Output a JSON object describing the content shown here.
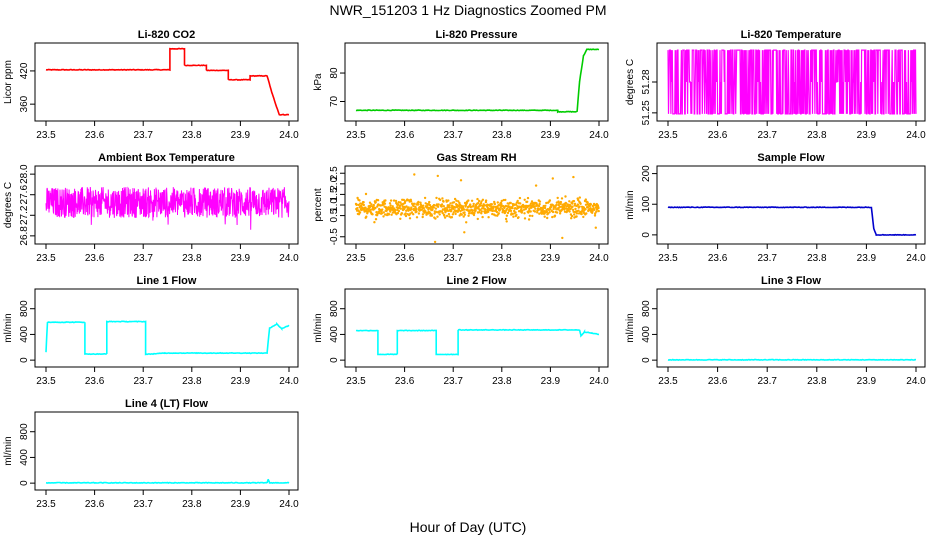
{
  "page": {
    "title": "NWR_151203  1 Hz Diagnostics Zoomed PM",
    "xlabel": "Hour of Day (UTC)"
  },
  "chart_data": [
    {
      "id": "co2",
      "type": "line",
      "title": "Li-820 CO2",
      "xlabel": "",
      "ylabel": "Licor ppm",
      "color": "#ff0000",
      "xlim": [
        23.5,
        24.0
      ],
      "ylim": [
        335,
        465
      ],
      "xticks": [
        "23.5",
        "23.6",
        "23.7",
        "23.8",
        "23.9",
        "24.0"
      ],
      "yticks": [
        "360",
        "420"
      ],
      "x": [
        23.5,
        23.755,
        23.755,
        23.785,
        23.785,
        23.83,
        23.83,
        23.875,
        23.875,
        23.92,
        23.92,
        23.955,
        23.965,
        23.98,
        24.0
      ],
      "y": [
        422,
        422,
        460,
        460,
        430,
        430,
        421,
        421,
        404,
        404,
        411,
        411,
        380,
        341,
        341
      ]
    },
    {
      "id": "pressure",
      "type": "line",
      "title": "Li-820 Pressure",
      "xlabel": "",
      "ylabel": "kPa",
      "color": "#00cc00",
      "xlim": [
        23.5,
        24.0
      ],
      "ylim": [
        64.2,
        89.5
      ],
      "xticks": [
        "23.5",
        "23.6",
        "23.7",
        "23.8",
        "23.9",
        "24.0"
      ],
      "yticks": [
        "70",
        "80"
      ],
      "x": [
        23.5,
        23.915,
        23.915,
        23.955,
        23.96,
        23.968,
        23.975,
        24.0
      ],
      "y": [
        66.9,
        66.9,
        66.4,
        66.4,
        77.0,
        86.0,
        88.3,
        88.3
      ]
    },
    {
      "id": "li820temp",
      "type": "line",
      "title": "Li-820 Temperature",
      "xlabel": "",
      "ylabel": "degrees C",
      "color": "#ff00ff",
      "xlim": [
        23.5,
        24.0
      ],
      "ylim": [
        51.245,
        51.315
      ],
      "xticks": [
        "23.5",
        "23.6",
        "23.7",
        "23.8",
        "23.9",
        "24.0"
      ],
      "yticks": [
        "51.25",
        "51.28"
      ],
      "levels": [
        51.249,
        51.28,
        51.311
      ]
    },
    {
      "id": "boxtemp",
      "type": "line",
      "title": "Ambient Box Temperature",
      "xlabel": "",
      "ylabel": "degrees C",
      "color": "#ff00ff",
      "xlim": [
        23.5,
        24.0
      ],
      "ylim": [
        26.7,
        28.1
      ],
      "xticks": [
        "23.5",
        "23.6",
        "23.7",
        "23.8",
        "23.9",
        "24.0"
      ],
      "yticks": [
        "26.8",
        "27.2",
        "27.6",
        "28.0"
      ],
      "mean": 27.45,
      "spread": 0.3
    },
    {
      "id": "rh",
      "type": "scatter",
      "title": "Gas Stream RH",
      "xlabel": "",
      "ylabel": "percent",
      "color": "#ffaa00",
      "xlim": [
        23.5,
        24.0
      ],
      "ylim": [
        -0.7,
        2.7
      ],
      "xticks": [
        "23.5",
        "23.6",
        "23.7",
        "23.8",
        "23.9",
        "24.0"
      ],
      "yticks": [
        "-0.5",
        "0.5",
        "1.0",
        "1.5",
        "2.0",
        "2.5"
      ],
      "mean": 0.85,
      "spread": 0.4
    },
    {
      "id": "sampleflow",
      "type": "line",
      "title": "Sample Flow",
      "xlabel": "",
      "ylabel": "ml/min",
      "color": "#0000cc",
      "xlim": [
        23.5,
        24.0
      ],
      "ylim": [
        -20,
        215
      ],
      "xticks": [
        "23.5",
        "23.6",
        "23.7",
        "23.8",
        "23.9",
        "24.0"
      ],
      "yticks": [
        "0",
        "100",
        "200"
      ],
      "x": [
        23.5,
        23.91,
        23.915,
        23.92,
        24.0
      ],
      "y": [
        90,
        90,
        20,
        0,
        0
      ]
    },
    {
      "id": "line1",
      "type": "line",
      "title": "Line 1 Flow",
      "xlabel": "",
      "ylabel": "ml/min",
      "color": "#00ffff",
      "xlim": [
        23.5,
        24.0
      ],
      "ylim": [
        -60,
        1060
      ],
      "xticks": [
        "23.5",
        "23.6",
        "23.7",
        "23.8",
        "23.9",
        "24.0"
      ],
      "yticks": [
        "0",
        "400",
        "800"
      ],
      "x": [
        23.5,
        23.503,
        23.58,
        23.58,
        23.625,
        23.625,
        23.705,
        23.705,
        23.745,
        23.955,
        23.96,
        23.975,
        23.985,
        24.0
      ],
      "y": [
        120,
        590,
        590,
        95,
        95,
        600,
        600,
        90,
        110,
        110,
        500,
        560,
        490,
        540
      ]
    },
    {
      "id": "line2",
      "type": "line",
      "title": "Line 2 Flow",
      "xlabel": "",
      "ylabel": "ml/min",
      "color": "#00ffff",
      "xlim": [
        23.5,
        24.0
      ],
      "ylim": [
        -60,
        1060
      ],
      "xticks": [
        "23.5",
        "23.6",
        "23.7",
        "23.8",
        "23.9",
        "24.0"
      ],
      "yticks": [
        "0",
        "400",
        "800"
      ],
      "x": [
        23.5,
        23.545,
        23.545,
        23.585,
        23.585,
        23.665,
        23.665,
        23.71,
        23.71,
        23.96,
        23.963,
        23.97,
        23.985,
        24.0
      ],
      "y": [
        460,
        460,
        90,
        90,
        460,
        460,
        90,
        90,
        470,
        470,
        380,
        440,
        420,
        400
      ]
    },
    {
      "id": "line3",
      "type": "line",
      "title": "Line 3 Flow",
      "xlabel": "",
      "ylabel": "ml/min",
      "color": "#00ffff",
      "xlim": [
        23.5,
        24.0
      ],
      "ylim": [
        -60,
        1060
      ],
      "xticks": [
        "23.5",
        "23.6",
        "23.7",
        "23.8",
        "23.9",
        "24.0"
      ],
      "yticks": [
        "0",
        "400",
        "800"
      ],
      "x": [
        23.5,
        24.0
      ],
      "y": [
        5,
        5
      ]
    },
    {
      "id": "line4",
      "type": "line",
      "title": "Line 4 (LT) Flow",
      "xlabel": "",
      "ylabel": "ml/min",
      "color": "#00ffff",
      "xlim": [
        23.5,
        24.0
      ],
      "ylim": [
        -60,
        1060
      ],
      "xticks": [
        "23.5",
        "23.6",
        "23.7",
        "23.8",
        "23.9",
        "24.0"
      ],
      "yticks": [
        "0",
        "400",
        "800"
      ],
      "x": [
        23.5,
        23.955,
        23.957,
        23.96,
        24.0
      ],
      "y": [
        5,
        5,
        60,
        5,
        5
      ]
    }
  ]
}
